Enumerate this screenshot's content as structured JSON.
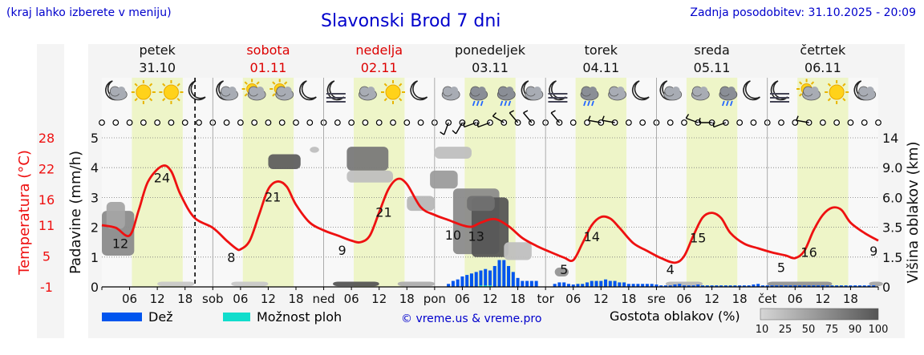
{
  "header": {
    "hint": "(kraj lahko izberete v meniju)",
    "title": "Slavonski Brod 7 dni",
    "updated": "Zadnja posodobitev: 31.10.2025 - 20:09"
  },
  "days": [
    {
      "name": "petek",
      "date": "31.10",
      "weekend": false
    },
    {
      "name": "sobota",
      "date": "01.11",
      "weekend": true
    },
    {
      "name": "nedelja",
      "date": "02.11",
      "weekend": true
    },
    {
      "name": "ponedeljek",
      "date": "03.11",
      "weekend": false
    },
    {
      "name": "torek",
      "date": "04.11",
      "weekend": false
    },
    {
      "name": "sreda",
      "date": "05.11",
      "weekend": false
    },
    {
      "name": "četrtek",
      "date": "06.11",
      "weekend": false
    }
  ],
  "colors": {
    "temperature": "#ee1111",
    "rain": "#0055ee",
    "storm": "#11ddcc",
    "daylight": "#eef5c8",
    "title": "#0000cc",
    "weekend": "#dd0000"
  },
  "icons": [
    "moon-cloud",
    "sun",
    "sun",
    "moon",
    "moon-cloud",
    "sun-cloud",
    "sun-cloud",
    "moon",
    "moon-fog",
    "cloud",
    "sun",
    "moon",
    "cloud",
    "rain",
    "rain",
    "moon-cloud",
    "moon-fog",
    "rain",
    "cloud",
    "moon",
    "moon-cloud",
    "cloud",
    "rain",
    "moon",
    "moon-fog",
    "sun-cloud",
    "sun",
    "moon-cloud"
  ],
  "legend": {
    "rain_label": "Dež",
    "storm_label": "Možnost ploh",
    "copyright": "© vreme.us & vreme.pro",
    "cloud_label": "Gostota oblakov (%)",
    "cloud_levels": [
      "10",
      "25",
      "50",
      "75",
      "90",
      "100"
    ]
  },
  "chart_data": {
    "type": "line",
    "title": "Slavonski Brod 7 dni",
    "x_unit": "hours since 31.10 00:00",
    "xlim": [
      0,
      168
    ],
    "x_tick_labels": [
      "06",
      "12",
      "18",
      "sob",
      "06",
      "12",
      "18",
      "ned",
      "06",
      "12",
      "18",
      "pon",
      "06",
      "12",
      "18",
      "tor",
      "06",
      "12",
      "18",
      "sre",
      "06",
      "12",
      "18",
      "čet",
      "06",
      "12",
      "18"
    ],
    "now_hours": 20.15,
    "y_left_label": "Padavine (mm/h)",
    "y_left_ticks": [
      "0",
      "1",
      "2",
      "3",
      "4",
      "5"
    ],
    "ylim_precip": [
      0,
      5
    ],
    "y_temp_label": "Temperatura (°C)",
    "y_temp_ticks": [
      "-1",
      "5",
      "11",
      "16",
      "22",
      "28"
    ],
    "ylim_temp": [
      -1,
      28
    ],
    "y_right_label": "Višina oblakov (km)",
    "y_right_ticks": [
      "0",
      "1.5",
      "3.5",
      "6.0",
      "9.0",
      "14"
    ],
    "daylight_hours": [
      [
        6.5,
        17.5
      ],
      [
        30.5,
        41.5
      ],
      [
        54.5,
        65.5
      ],
      [
        78.5,
        89.5
      ],
      [
        102.5,
        113.5
      ],
      [
        126.5,
        137.5
      ],
      [
        150.5,
        161.5
      ]
    ],
    "temperature": {
      "name": "Temperatura",
      "x": [
        0,
        3,
        6,
        8,
        10,
        13,
        15,
        17,
        20,
        24,
        27,
        29,
        30,
        32,
        34,
        36,
        38,
        40,
        42,
        45,
        48,
        51,
        54,
        56,
        58,
        60,
        62,
        64,
        66,
        69,
        72,
        75,
        78,
        80,
        82,
        85,
        88,
        91,
        94,
        97,
        100,
        102,
        104,
        106,
        108,
        110,
        112,
        115,
        118,
        121,
        124,
        126,
        128,
        130,
        132,
        134,
        136,
        139,
        142,
        145,
        148,
        150,
        152,
        154,
        156,
        158,
        160,
        162,
        165,
        168
      ],
      "values": [
        11,
        10.5,
        9,
        14,
        19.5,
        22.5,
        21.5,
        17,
        12.5,
        10.5,
        8,
        6.5,
        6.3,
        8,
        13,
        18,
        19.5,
        18.5,
        15,
        11.5,
        10,
        9,
        8,
        7.7,
        9,
        13.5,
        18,
        20,
        19,
        14.5,
        13,
        12,
        11,
        10.7,
        11.5,
        12.2,
        10.8,
        8.5,
        7,
        5.8,
        4.7,
        4.2,
        7.5,
        11,
        12.6,
        12.3,
        10.5,
        7.5,
        6,
        4.6,
        3.7,
        5,
        9,
        12.5,
        13.4,
        12.4,
        9.5,
        7.4,
        6.5,
        5.7,
        5.1,
        4.6,
        6,
        10,
        13,
        14.4,
        14,
        11.5,
        9.5,
        8
      ]
    },
    "temp_labels": [
      {
        "x": 4,
        "label": "12"
      },
      {
        "x": 13,
        "label": "24"
      },
      {
        "x": 28,
        "label": "8"
      },
      {
        "x": 37,
        "label": "21"
      },
      {
        "x": 52,
        "label": "9"
      },
      {
        "x": 61,
        "label": "21"
      },
      {
        "x": 76,
        "label": "10"
      },
      {
        "x": 81,
        "label": "13"
      },
      {
        "x": 100,
        "label": "5"
      },
      {
        "x": 106,
        "label": "14"
      },
      {
        "x": 123,
        "label": "4"
      },
      {
        "x": 129,
        "label": "15"
      },
      {
        "x": 147,
        "label": "5"
      },
      {
        "x": 153,
        "label": "16"
      },
      {
        "x": 167,
        "label": "9"
      }
    ],
    "rain": {
      "name": "Dež",
      "x": [
        75,
        76,
        77,
        78,
        79,
        80,
        81,
        82,
        83,
        84,
        85,
        86,
        87,
        88,
        89,
        90,
        91,
        92,
        93,
        94,
        98,
        99,
        100,
        101,
        102,
        103,
        104,
        105,
        106,
        107,
        108,
        109,
        110,
        111,
        112,
        113,
        114,
        115,
        116,
        117,
        118,
        119,
        120,
        121,
        122,
        123,
        124,
        125,
        126,
        127,
        128,
        129,
        130,
        131,
        132,
        133,
        134,
        135,
        136,
        137,
        138,
        139,
        140,
        141,
        142,
        143,
        144,
        145,
        146,
        147,
        148,
        149,
        150,
        151,
        152,
        153,
        154,
        155,
        156,
        157,
        158,
        159,
        160,
        161,
        162,
        163,
        164,
        165,
        166,
        167
      ],
      "values": [
        0.1,
        0.2,
        0.25,
        0.35,
        0.4,
        0.45,
        0.5,
        0.55,
        0.6,
        0.55,
        0.7,
        0.9,
        0.9,
        0.7,
        0.5,
        0.3,
        0.2,
        0.2,
        0.2,
        0.2,
        0.1,
        0.15,
        0.15,
        0.1,
        0.08,
        0.1,
        0.1,
        0.15,
        0.2,
        0.2,
        0.2,
        0.25,
        0.2,
        0.2,
        0.15,
        0.15,
        0.1,
        0.1,
        0.1,
        0.1,
        0.1,
        0.1,
        0.08,
        0.05,
        0.05,
        0.05,
        0.08,
        0.1,
        0.05,
        0.05,
        0.05,
        0.08,
        0.05,
        0.05,
        0.05,
        0.05,
        0.05,
        0.05,
        0.05,
        0.05,
        0.05,
        0.05,
        0.05,
        0.08,
        0.1,
        0.05,
        0.05,
        0.05,
        0.05,
        0.05,
        0.05,
        0.05,
        0.05,
        0.05,
        0.05,
        0.05,
        0.05,
        0.05,
        0.05,
        0.05,
        0.05,
        0.05,
        0.05,
        0.05,
        0.05,
        0.05,
        0.05,
        0.05,
        0.05,
        0.05
      ]
    },
    "storm": {
      "name": "Možnost ploh",
      "x": [
        82,
        83,
        84
      ],
      "values": [
        0.05,
        0.05,
        0.05
      ]
    },
    "cloud_density": [
      {
        "x": 0,
        "h": 1.8,
        "w": 7,
        "dh": 1.5,
        "d": 55
      },
      {
        "x": 1,
        "h": 2.4,
        "w": 4,
        "dh": 0.9,
        "d": 40
      },
      {
        "x": 36,
        "h": 4.2,
        "w": 7,
        "dh": 0.5,
        "d": 80
      },
      {
        "x": 45,
        "h": 4.6,
        "w": 2,
        "dh": 0.2,
        "d": 25
      },
      {
        "x": 53,
        "h": 4.3,
        "w": 9,
        "dh": 0.8,
        "d": 65
      },
      {
        "x": 53,
        "h": 3.7,
        "w": 10,
        "dh": 0.4,
        "d": 25
      },
      {
        "x": 66,
        "h": 2.8,
        "w": 6,
        "dh": 0.5,
        "d": 30
      },
      {
        "x": 72,
        "h": 4.5,
        "w": 8,
        "dh": 0.4,
        "d": 25
      },
      {
        "x": 71,
        "h": 3.6,
        "w": 6,
        "dh": 0.6,
        "d": 45
      },
      {
        "x": 76,
        "h": 2.2,
        "w": 10,
        "dh": 2.2,
        "d": 55
      },
      {
        "x": 80,
        "h": 2.0,
        "w": 8,
        "dh": 2.0,
        "d": 85
      },
      {
        "x": 79,
        "h": 2.8,
        "w": 6,
        "dh": 0.5,
        "d": 70
      },
      {
        "x": 87,
        "h": 1.2,
        "w": 6,
        "dh": 0.6,
        "d": 25
      },
      {
        "x": 98,
        "h": 0.5,
        "w": 3,
        "dh": 0.3,
        "d": 50
      },
      {
        "x": 12,
        "h": 0.1,
        "w": 8,
        "dh": 0.15,
        "d": 20
      },
      {
        "x": 28,
        "h": 0.1,
        "w": 8,
        "dh": 0.15,
        "d": 20
      },
      {
        "x": 50,
        "h": 0.1,
        "w": 10,
        "dh": 0.15,
        "d": 85
      },
      {
        "x": 64,
        "h": 0.1,
        "w": 8,
        "dh": 0.15,
        "d": 35
      },
      {
        "x": 122,
        "h": 0.1,
        "w": 8,
        "dh": 0.15,
        "d": 30
      },
      {
        "x": 144,
        "h": 0.1,
        "w": 14,
        "dh": 0.15,
        "d": 50
      },
      {
        "x": 166,
        "h": 0.1,
        "w": 3,
        "dh": 0.15,
        "d": 40
      }
    ],
    "wind": [
      {
        "x": 0,
        "dir": 0,
        "s": 0
      },
      {
        "x": 3,
        "dir": 0,
        "s": 0
      },
      {
        "x": 6,
        "dir": 0,
        "s": 0
      },
      {
        "x": 9,
        "dir": 0,
        "s": 0
      },
      {
        "x": 12,
        "dir": 0,
        "s": 0
      },
      {
        "x": 15,
        "dir": 0,
        "s": 0
      },
      {
        "x": 18,
        "dir": 0,
        "s": 0
      },
      {
        "x": 21,
        "dir": 0,
        "s": 0
      },
      {
        "x": 24,
        "dir": 0,
        "s": 0
      },
      {
        "x": 27,
        "dir": 0,
        "s": 0
      },
      {
        "x": 30,
        "dir": 0,
        "s": 0
      },
      {
        "x": 33,
        "dir": 0,
        "s": 0
      },
      {
        "x": 36,
        "dir": 0,
        "s": 0
      },
      {
        "x": 39,
        "dir": 0,
        "s": 0
      },
      {
        "x": 42,
        "dir": 0,
        "s": 0
      },
      {
        "x": 45,
        "dir": 0,
        "s": 0
      },
      {
        "x": 48,
        "dir": 0,
        "s": 0
      },
      {
        "x": 51,
        "dir": 0,
        "s": 0
      },
      {
        "x": 54,
        "dir": 0,
        "s": 0
      },
      {
        "x": 57,
        "dir": 0,
        "s": 0
      },
      {
        "x": 60,
        "dir": 0,
        "s": 0
      },
      {
        "x": 63,
        "dir": 0,
        "s": 0
      },
      {
        "x": 66,
        "dir": 0,
        "s": 0
      },
      {
        "x": 69,
        "dir": 0,
        "s": 0
      },
      {
        "x": 72,
        "dir": 0,
        "s": 0
      },
      {
        "x": 75,
        "dir": 200,
        "s": 1
      },
      {
        "x": 78,
        "dir": 210,
        "s": 1
      },
      {
        "x": 81,
        "dir": 250,
        "s": 1
      },
      {
        "x": 84,
        "dir": 250,
        "s": 1
      },
      {
        "x": 87,
        "dir": 300,
        "s": 1
      },
      {
        "x": 90,
        "dir": 320,
        "s": 1
      },
      {
        "x": 93,
        "dir": 320,
        "s": 1
      },
      {
        "x": 96,
        "dir": 0,
        "s": 0
      },
      {
        "x": 99,
        "dir": 320,
        "s": 1
      },
      {
        "x": 102,
        "dir": 0,
        "s": 0
      },
      {
        "x": 105,
        "dir": 0,
        "s": 0
      },
      {
        "x": 108,
        "dir": 280,
        "s": 1
      },
      {
        "x": 111,
        "dir": 280,
        "s": 1
      },
      {
        "x": 114,
        "dir": 0,
        "s": 0
      },
      {
        "x": 117,
        "dir": 0,
        "s": 0
      },
      {
        "x": 120,
        "dir": 0,
        "s": 0
      },
      {
        "x": 123,
        "dir": 0,
        "s": 0
      },
      {
        "x": 126,
        "dir": 0,
        "s": 0
      },
      {
        "x": 129,
        "dir": 290,
        "s": 1
      },
      {
        "x": 132,
        "dir": 270,
        "s": 1
      },
      {
        "x": 135,
        "dir": 250,
        "s": 1
      },
      {
        "x": 138,
        "dir": 0,
        "s": 0
      },
      {
        "x": 141,
        "dir": 0,
        "s": 0
      },
      {
        "x": 144,
        "dir": 0,
        "s": 0
      },
      {
        "x": 147,
        "dir": 0,
        "s": 0
      },
      {
        "x": 150,
        "dir": 0,
        "s": 0
      },
      {
        "x": 153,
        "dir": 280,
        "s": 1
      },
      {
        "x": 156,
        "dir": 0,
        "s": 0
      },
      {
        "x": 159,
        "dir": 0,
        "s": 0
      },
      {
        "x": 162,
        "dir": 0,
        "s": 0
      },
      {
        "x": 165,
        "dir": 0,
        "s": 0
      },
      {
        "x": 168,
        "dir": 0,
        "s": 0
      }
    ]
  }
}
